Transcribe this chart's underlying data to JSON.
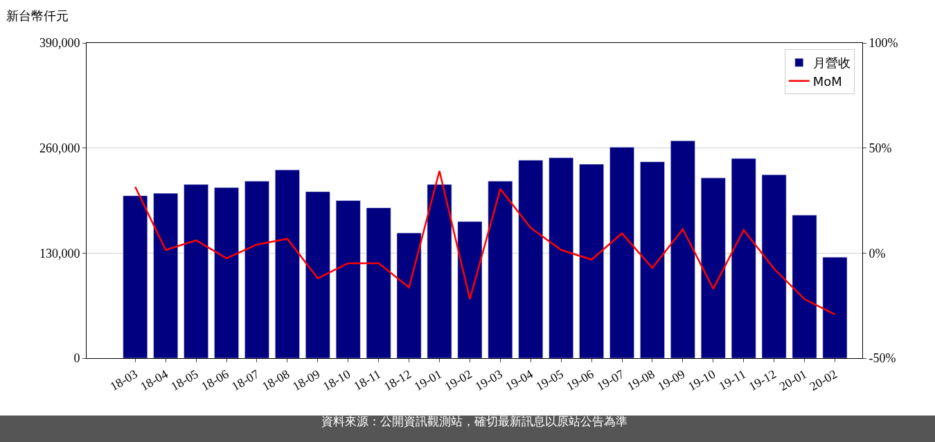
{
  "chart_data": {
    "type": "bar",
    "ylabel": "新台幣仟元",
    "categories": [
      "18-03",
      "18-04",
      "18-05",
      "18-06",
      "18-07",
      "18-08",
      "18-09",
      "18-10",
      "18-11",
      "18-12",
      "19-01",
      "19-02",
      "19-03",
      "19-04",
      "19-05",
      "19-06",
      "19-07",
      "19-08",
      "19-09",
      "19-10",
      "19-11",
      "19-12",
      "20-01",
      "20-02"
    ],
    "series": [
      {
        "name": "月營收",
        "color": "#000080",
        "values": [
          201000,
          204000,
          215000,
          211000,
          219000,
          233000,
          206000,
          195000,
          186000,
          155000,
          215000,
          169000,
          219000,
          245000,
          248000,
          240000,
          261000,
          243000,
          269000,
          223000,
          247000,
          227000,
          177000,
          125000
        ]
      },
      {
        "name": "MoM",
        "type": "line",
        "axis": "y2",
        "color": "#ff0000",
        "values": [
          31.5,
          1.5,
          6.1,
          -2.5,
          4.1,
          6.8,
          -12.0,
          -4.8,
          -4.8,
          -16.3,
          39.1,
          -21.9,
          30.5,
          12.0,
          1.5,
          -3.1,
          9.4,
          -7.1,
          11.4,
          -17.0,
          11.0,
          -7.4,
          -21.9,
          -29.2
        ]
      }
    ],
    "ylim": [
      0,
      390000
    ],
    "yticks": [
      {
        "value": 0,
        "label": "0"
      },
      {
        "value": 130000,
        "label": "130,000"
      },
      {
        "value": 260000,
        "label": "260,000"
      },
      {
        "value": 390000,
        "label": "390,000"
      }
    ],
    "y2lim": [
      -50,
      100
    ],
    "y2ticks": [
      {
        "value": -50,
        "label": "-50%"
      },
      {
        "value": 0,
        "label": "0%"
      },
      {
        "value": 50,
        "label": "50%"
      },
      {
        "value": 100,
        "label": "100%"
      }
    ],
    "grid": "y",
    "legend": "top right",
    "marker": "none",
    "line_style": "solid",
    "annotations": [
      "資料來源：公開資訊觀測站，確切最新訊息以原站公告為準"
    ]
  }
}
